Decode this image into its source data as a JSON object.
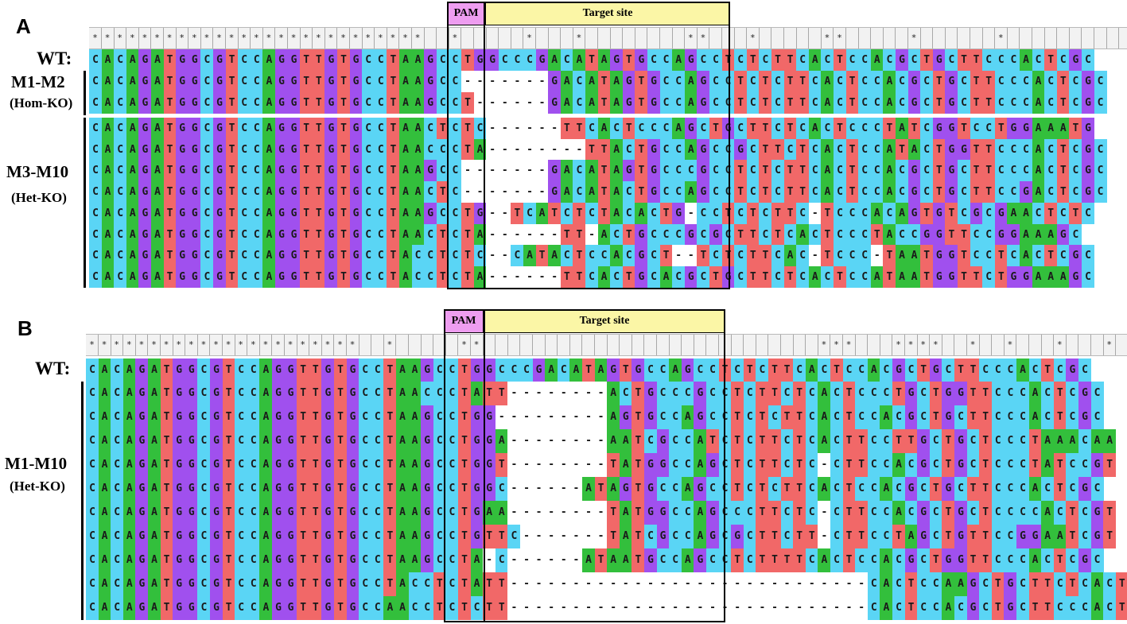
{
  "colors": {
    "A": "#33bf3c",
    "C": "#5ad5f5",
    "G": "#a050ee",
    "T": "#f16868",
    "gap": "#ffffff",
    "pam_header": "#ee9df0",
    "target_header": "#fbf6a6"
  },
  "panels": [
    {
      "letter": "A",
      "pam_label": "PAM",
      "target_label": "Target site",
      "consensus": "***************************  *     *   *        **   *     **     *      *",
      "wt_label": "WT:",
      "wt_sequence": "CACAGATGGCGTCCAGGTTGTGCCTAAGCCTGGCCCGACATAGTGCCAGCCTCTCTTCACTCCACGCTGCTTCCCACTCGC",
      "groups": [
        {
          "label": "M1-M2",
          "sublabel": "(Hom-KO)"
        },
        {
          "label": "M3-M10",
          "sublabel": "(Het-KO)"
        }
      ],
      "sequences": [
        "CACAGATGGCGTCCAGGTTGTGCCTAAGCC-------GACATAGTGCCAGCCTCTCTTCACTCCACGCTGCTTCCCACTCGC",
        "CACAGATGGCGTCCAGGTTGTGCCTAAGCCT------GACATAGTGCCAGCCTCTCTTCACTCCACGCTGCTTCCCACTCGC",
        "CACAGATGGCGTCCAGGTTGTGCCTAACTCTC------TTCACTCCCAGCTGCTTCTCACTCCCTATCGGTCCTGGAAATG",
        "CACAGATGGCGTCCAGGTTGTGCCTAACCCTA--------TTACTGCCAGCCGCTTCTCACTCCATACTGGTTCCCACTCGC",
        "CACAGATGGCGTCCAGGTTGTGCCTAAGCC-------GACATAGTGCCCGCCTCTCTTCACTCCACGCTGCTTCCCACTCGC",
        "CACAGATGGCGTCCAGGTTGTGCCTAACTC-------GACATACTGCCAGCCTCTCTTCACTCCACGCTGCTTCCGACTCGC",
        "CACAGATGGCGTCCAGGTTGTGCCTAAGCCTG--TCATCTCTACACTG-CCTCTCTTC-TCCCACAGTGTCGCGAACTCTC",
        "CACAGATGGCGTCCAGGTTGTGCCTAACTCTA------TT-ACTGCCCGCGCTTCTCACTCCCTACCGGTTCCGGAAAGC",
        "CACAGATGGCGTCCAGGTTGTGCCTACCTCTC--CATACTCCACGCT--TCTCTTCAC-TCCC-TAATGGTCCTCACTCGC",
        "CACAGATGGCGTCCAGGTTGTGCCTACCTCTA------TTCACTGCACGCTGCTTCTCACTCCATAATGGTTCTGGAAAGC"
      ]
    },
    {
      "letter": "B",
      "pam_label": "PAM",
      "target_label": "Target site",
      "consensus": "**********************  *     **                           ***   ****  *  *   *   *",
      "wt_label": "WT:",
      "wt_sequence": "CACAGATGGCGTCCAGGTTGTGCCTAAGCCTGGCCCGACATAGTGCCAGCCTCTCTTCACTCCACGCTGCTTCCCACTCGC",
      "groups": [
        {
          "label": "M1-M10",
          "sublabel": "(Het-KO)"
        }
      ],
      "sequences": [
        "CACAGATGGCGTCCAGGTTGTGCCTAACCCTATT--------ACTGCCCGCCTCTTCTCACTCCCTGCTGGTTCCCACTCGC",
        "CACAGATGGCGTCCAGGTTGTGCCTAAGCCTGG---------AGTGCCAGCCTCTCTTCACTCCACGCTGCTTCCCACTCGC",
        "CACAGATGGCGTCCAGGTTGTGCCTAAGCCTGGA--------AATCGCCATCTCTTCTCACTTCCTTGCTGCTCCCTAAACAA",
        "CACAGATGGCGTCCAGGTTGTGCCTAAGCCTGGT--------TATGGCCAGCTCTTCTC-CTTCCACGCTGCTCCCTATCCGT",
        "CACAGATGGCGTCCAGGTTGTGCCTAAGCCTGGC------ATAGTGCCAGCCTCTCTTCACTCCACGCTGCTTCCCACTCGC",
        "CACAGATGGCGTCCAGGTTGTGCCTAAGCCTGAA--------TATGGCCAGCCCTTCTC-CTTCCACGCTGCTCCCCACTCGT",
        "CACAGATGGCGTCCAGGTTGTGCCTAAGCCTGTTC-------TATCGCCAGCGCTTCTT-CTTCCTAGCTGTTCCGGAATCGT",
        "CACAGATGGCGTCCAGGTTGTGCCTAAGCCTA-C------ATAATGCCAGCCTCTTTTCACTCCACGCTGGTTCCCACTCGC",
        "CACAGATGGCGTCCAGGTTGTGCCTACCTCTATT-----------------------------CACTCCAAGCTGCTTCTCACTCCA",
        "CACAGATGGCGTCCAGGTTGTGCCAACCTCTCTT-----------------------------CACTCCACGCTGCTTCCCACTCGC"
      ]
    }
  ]
}
